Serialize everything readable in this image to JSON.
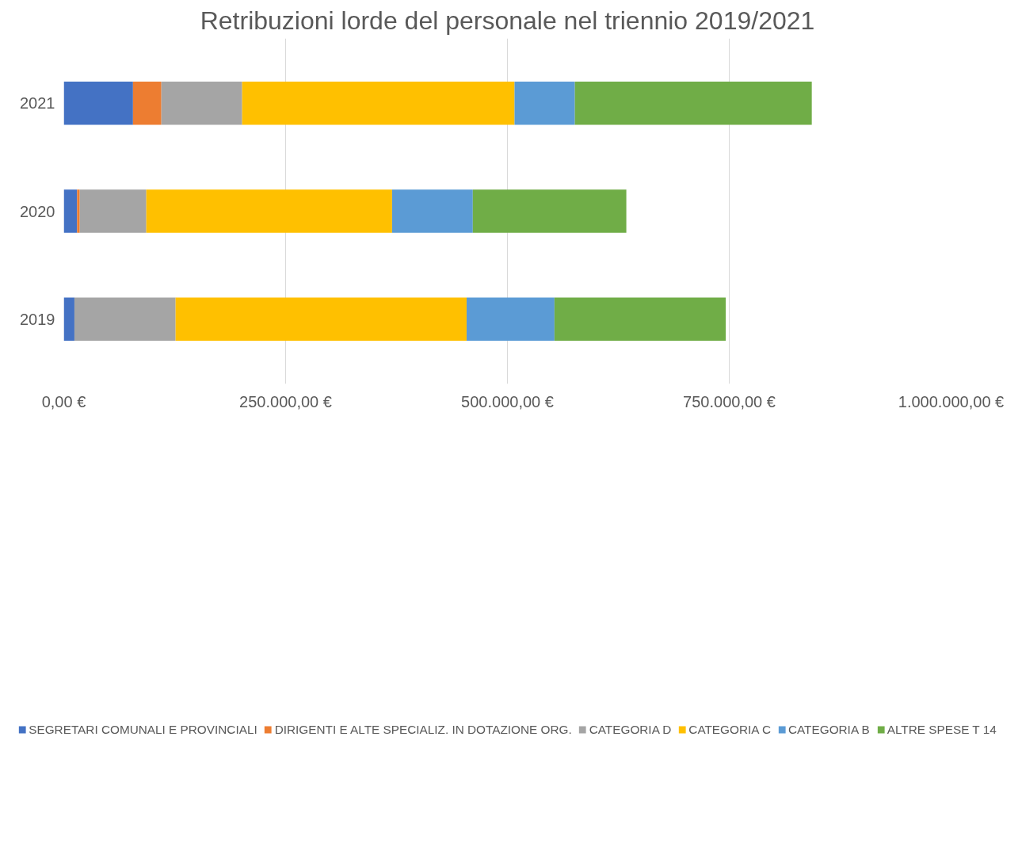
{
  "chart_data": {
    "type": "bar",
    "orientation": "horizontal",
    "stacked": true,
    "title": "Retribuzioni lorde del personale nel triennio 2019/2021",
    "categories": [
      "2021",
      "2020",
      "2019"
    ],
    "series": [
      {
        "name": "SEGRETARI COMUNALI E PROVINCIALI",
        "color": "#4472c4",
        "values": [
          78000,
          15000,
          12000
        ]
      },
      {
        "name": "DIRIGENTI E ALTE SPECIALIZ. IN DOTAZIONE ORG.",
        "color": "#ed7d31",
        "values": [
          32000,
          3000,
          0
        ]
      },
      {
        "name": "CATEGORIA D",
        "color": "#a5a5a5",
        "values": [
          91000,
          75000,
          114000
        ]
      },
      {
        "name": "CATEGORIA C",
        "color": "#ffc000",
        "values": [
          307000,
          277000,
          328000
        ]
      },
      {
        "name": "CATEGORIA B",
        "color": "#5b9bd5",
        "values": [
          68000,
          91000,
          99000
        ]
      },
      {
        "name": "ALTRE SPESE T 14",
        "color": "#70ad47",
        "values": [
          267000,
          173000,
          193000
        ]
      }
    ],
    "xlim": [
      0,
      1000000
    ],
    "xticks": [
      {
        "value": 0,
        "label": "0,00 €"
      },
      {
        "value": 250000,
        "label": "250.000,00 €"
      },
      {
        "value": 500000,
        "label": "500.000,00 €"
      },
      {
        "value": 750000,
        "label": "750.000,00 €"
      },
      {
        "value": 1000000,
        "label": "1.000.000,00 €"
      }
    ],
    "grid": "x",
    "legend": "bottom"
  }
}
